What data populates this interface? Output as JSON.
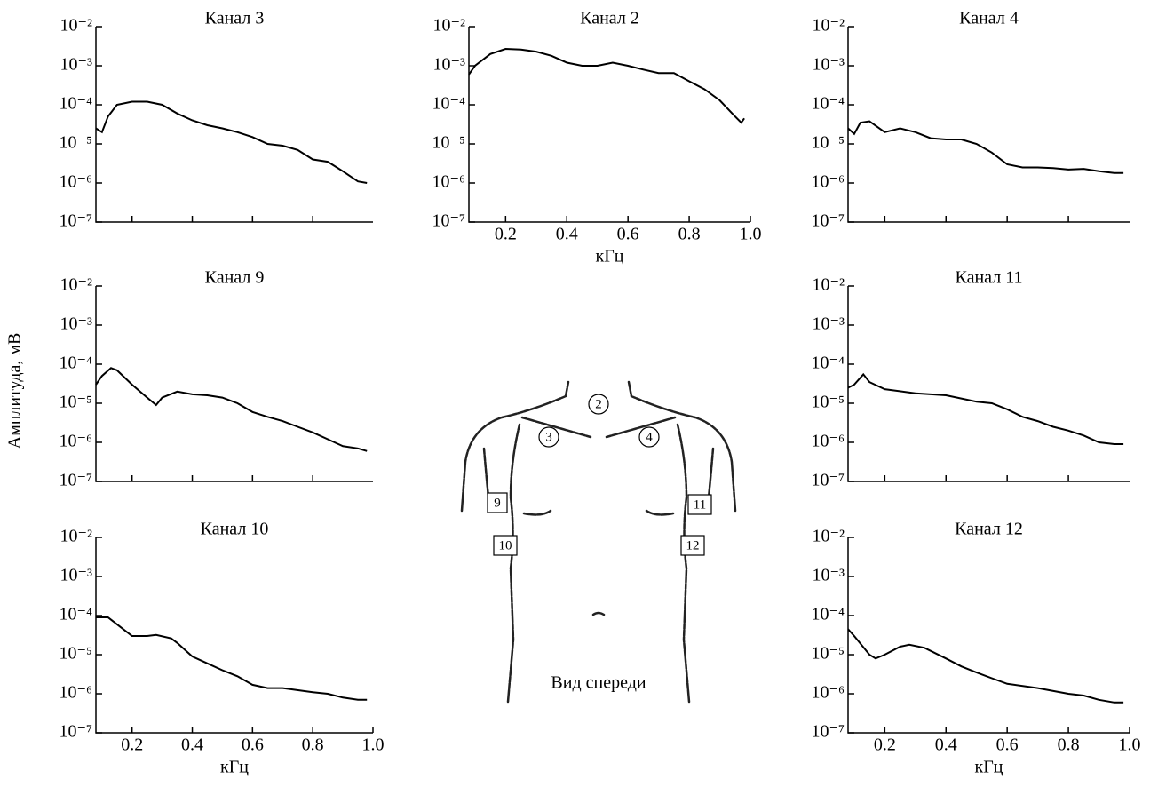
{
  "ylabel": "Амплитуда, мВ",
  "diagram": {
    "caption": "Вид спереди",
    "electrodes": [
      "2",
      "3",
      "4",
      "9",
      "10",
      "11",
      "12"
    ]
  },
  "chart_data": [
    {
      "type": "line",
      "title": "Канал 3",
      "log_y": true,
      "show_xtick_labels": false,
      "xlim": [
        0.08,
        1.0
      ],
      "ylim": [
        1e-07,
        0.01
      ],
      "xticks": [
        0.2,
        0.4,
        0.6,
        0.8
      ],
      "yticks": [
        {
          "value": 1e-07,
          "label": "10⁻⁷"
        },
        {
          "value": 1e-06,
          "label": "10⁻⁶"
        },
        {
          "value": 1e-05,
          "label": "10⁻⁵"
        },
        {
          "value": 0.0001,
          "label": "10⁻⁴"
        },
        {
          "value": 0.001,
          "label": "10⁻³"
        },
        {
          "value": 0.01,
          "label": "10⁻²"
        }
      ],
      "series": [
        {
          "color": "#000000",
          "x": [
            0.08,
            0.1,
            0.12,
            0.15,
            0.2,
            0.25,
            0.3,
            0.35,
            0.4,
            0.45,
            0.5,
            0.55,
            0.6,
            0.65,
            0.7,
            0.75,
            0.8,
            0.85,
            0.9,
            0.95,
            0.98
          ],
          "values": [
            2.5e-05,
            2e-05,
            5e-05,
            0.0001,
            0.00012,
            0.00012,
            0.0001,
            6e-05,
            4e-05,
            3e-05,
            2.5e-05,
            2e-05,
            1.5e-05,
            1e-05,
            9e-06,
            7e-06,
            4e-06,
            3.5e-06,
            2e-06,
            1.1e-06,
            1e-06
          ]
        }
      ]
    },
    {
      "type": "line",
      "title": "Канал 2",
      "log_y": true,
      "show_xtick_labels": true,
      "xlabel": "кГц",
      "xlim": [
        0.08,
        1.0
      ],
      "ylim": [
        1e-07,
        0.01
      ],
      "xticks": [
        0.2,
        0.4,
        0.6,
        0.8,
        {
          "value": 1.0,
          "label": "1.0"
        }
      ],
      "yticks": [
        {
          "value": 1e-07,
          "label": "10⁻⁷"
        },
        {
          "value": 1e-06,
          "label": "10⁻⁶"
        },
        {
          "value": 1e-05,
          "label": "10⁻⁵"
        },
        {
          "value": 0.0001,
          "label": "10⁻⁴"
        },
        {
          "value": 0.001,
          "label": "10⁻³"
        },
        {
          "value": 0.01,
          "label": "10⁻²"
        }
      ],
      "series": [
        {
          "color": "#000000",
          "x": [
            0.08,
            0.1,
            0.15,
            0.2,
            0.25,
            0.3,
            0.35,
            0.4,
            0.45,
            0.5,
            0.55,
            0.6,
            0.65,
            0.7,
            0.75,
            0.8,
            0.85,
            0.9,
            0.95,
            0.97,
            0.98
          ],
          "values": [
            0.0006,
            0.001,
            0.002,
            0.0027,
            0.0026,
            0.0023,
            0.0018,
            0.0012,
            0.001,
            0.001,
            0.0012,
            0.001,
            0.0008,
            0.00065,
            0.00065,
            0.0004,
            0.00025,
            0.00013,
            5e-05,
            3.5e-05,
            4.5e-05
          ]
        }
      ]
    },
    {
      "type": "line",
      "title": "Канал 4",
      "log_y": true,
      "show_xtick_labels": false,
      "xlim": [
        0.08,
        1.0
      ],
      "ylim": [
        1e-07,
        0.01
      ],
      "xticks": [
        0.2,
        0.4,
        0.6,
        0.8
      ],
      "yticks": [
        {
          "value": 1e-07,
          "label": "10⁻⁷"
        },
        {
          "value": 1e-06,
          "label": "10⁻⁶"
        },
        {
          "value": 1e-05,
          "label": "10⁻⁵"
        },
        {
          "value": 0.0001,
          "label": "10⁻⁴"
        },
        {
          "value": 0.001,
          "label": "10⁻³"
        },
        {
          "value": 0.01,
          "label": "10⁻²"
        }
      ],
      "series": [
        {
          "color": "#000000",
          "x": [
            0.08,
            0.1,
            0.12,
            0.15,
            0.2,
            0.25,
            0.3,
            0.35,
            0.4,
            0.45,
            0.5,
            0.55,
            0.6,
            0.65,
            0.7,
            0.75,
            0.8,
            0.85,
            0.9,
            0.95,
            0.98
          ],
          "values": [
            2.5e-05,
            1.8e-05,
            3.5e-05,
            3.8e-05,
            2e-05,
            2.5e-05,
            2e-05,
            1.4e-05,
            1.3e-05,
            1.3e-05,
            1e-05,
            6e-06,
            3e-06,
            2.5e-06,
            2.5e-06,
            2.4e-06,
            2.2e-06,
            2.3e-06,
            2e-06,
            1.8e-06,
            1.8e-06
          ]
        }
      ]
    },
    {
      "type": "line",
      "title": "Канал 9",
      "log_y": true,
      "show_xtick_labels": false,
      "xlim": [
        0.08,
        1.0
      ],
      "ylim": [
        1e-07,
        0.01
      ],
      "xticks": [
        0.2,
        0.4,
        0.6,
        0.8
      ],
      "yticks": [
        {
          "value": 1e-07,
          "label": "10⁻⁷"
        },
        {
          "value": 1e-06,
          "label": "10⁻⁶"
        },
        {
          "value": 1e-05,
          "label": "10⁻⁵"
        },
        {
          "value": 0.0001,
          "label": "10⁻⁴"
        },
        {
          "value": 0.001,
          "label": "10⁻³"
        },
        {
          "value": 0.01,
          "label": "10⁻²"
        }
      ],
      "series": [
        {
          "color": "#000000",
          "x": [
            0.08,
            0.1,
            0.13,
            0.15,
            0.2,
            0.25,
            0.28,
            0.3,
            0.35,
            0.4,
            0.45,
            0.5,
            0.55,
            0.6,
            0.65,
            0.7,
            0.75,
            0.8,
            0.85,
            0.9,
            0.95,
            0.98
          ],
          "values": [
            3e-05,
            5e-05,
            8e-05,
            7e-05,
            3e-05,
            1.4e-05,
            9e-06,
            1.4e-05,
            2e-05,
            1.7e-05,
            1.6e-05,
            1.4e-05,
            1e-05,
            6e-06,
            4.5e-06,
            3.5e-06,
            2.5e-06,
            1.8e-06,
            1.2e-06,
            8e-07,
            7e-07,
            6e-07
          ]
        }
      ]
    },
    {
      "type": "line",
      "title": "Канал 11",
      "log_y": true,
      "show_xtick_labels": false,
      "xlim": [
        0.08,
        1.0
      ],
      "ylim": [
        1e-07,
        0.01
      ],
      "xticks": [
        0.2,
        0.4,
        0.6,
        0.8
      ],
      "yticks": [
        {
          "value": 1e-07,
          "label": "10⁻⁷"
        },
        {
          "value": 1e-06,
          "label": "10⁻⁶"
        },
        {
          "value": 1e-05,
          "label": "10⁻⁵"
        },
        {
          "value": 0.0001,
          "label": "10⁻⁴"
        },
        {
          "value": 0.001,
          "label": "10⁻³"
        },
        {
          "value": 0.01,
          "label": "10⁻²"
        }
      ],
      "series": [
        {
          "color": "#000000",
          "x": [
            0.08,
            0.1,
            0.13,
            0.15,
            0.2,
            0.3,
            0.4,
            0.5,
            0.55,
            0.6,
            0.65,
            0.7,
            0.75,
            0.8,
            0.85,
            0.9,
            0.95,
            0.98
          ],
          "values": [
            2.5e-05,
            3e-05,
            5.5e-05,
            3.5e-05,
            2.3e-05,
            1.8e-05,
            1.6e-05,
            1.1e-05,
            1e-05,
            7e-06,
            4.5e-06,
            3.5e-06,
            2.5e-06,
            2e-06,
            1.5e-06,
            1e-06,
            9e-07,
            9e-07
          ]
        }
      ]
    },
    {
      "type": "line",
      "title": "Канал 10",
      "log_y": true,
      "show_xtick_labels": true,
      "xlabel": "кГц",
      "xlim": [
        0.08,
        1.0
      ],
      "ylim": [
        1e-07,
        0.01
      ],
      "xticks": [
        0.2,
        0.4,
        0.6,
        0.8,
        {
          "value": 1.0,
          "label": "1.0"
        }
      ],
      "yticks": [
        {
          "value": 1e-07,
          "label": "10⁻⁷"
        },
        {
          "value": 1e-06,
          "label": "10⁻⁶"
        },
        {
          "value": 1e-05,
          "label": "10⁻⁵"
        },
        {
          "value": 0.0001,
          "label": "10⁻⁴"
        },
        {
          "value": 0.001,
          "label": "10⁻³"
        },
        {
          "value": 0.01,
          "label": "10⁻²"
        }
      ],
      "series": [
        {
          "color": "#000000",
          "x": [
            0.08,
            0.12,
            0.15,
            0.2,
            0.25,
            0.28,
            0.33,
            0.35,
            0.4,
            0.45,
            0.5,
            0.55,
            0.6,
            0.65,
            0.7,
            0.8,
            0.85,
            0.9,
            0.95,
            0.98
          ],
          "values": [
            9e-05,
            9e-05,
            6e-05,
            3e-05,
            3e-05,
            3.2e-05,
            2.6e-05,
            2e-05,
            9e-06,
            6e-06,
            4e-06,
            2.8e-06,
            1.7e-06,
            1.4e-06,
            1.4e-06,
            1.1e-06,
            1e-06,
            8e-07,
            7e-07,
            7e-07
          ]
        }
      ]
    },
    {
      "type": "line",
      "title": "Канал 12",
      "log_y": true,
      "show_xtick_labels": true,
      "xlabel": "кГц",
      "xlim": [
        0.08,
        1.0
      ],
      "ylim": [
        1e-07,
        0.01
      ],
      "xticks": [
        0.2,
        0.4,
        0.6,
        0.8,
        {
          "value": 1.0,
          "label": "1.0"
        }
      ],
      "yticks": [
        {
          "value": 1e-07,
          "label": "10⁻⁷"
        },
        {
          "value": 1e-06,
          "label": "10⁻⁶"
        },
        {
          "value": 1e-05,
          "label": "10⁻⁵"
        },
        {
          "value": 0.0001,
          "label": "10⁻⁴"
        },
        {
          "value": 0.001,
          "label": "10⁻³"
        },
        {
          "value": 0.01,
          "label": "10⁻²"
        }
      ],
      "series": [
        {
          "color": "#000000",
          "x": [
            0.08,
            0.1,
            0.15,
            0.17,
            0.2,
            0.25,
            0.28,
            0.33,
            0.4,
            0.45,
            0.5,
            0.55,
            0.6,
            0.7,
            0.8,
            0.85,
            0.9,
            0.95,
            0.98
          ],
          "values": [
            4.5e-05,
            3e-05,
            1e-05,
            8e-06,
            1e-05,
            1.6e-05,
            1.8e-05,
            1.5e-05,
            8e-06,
            5e-06,
            3.5e-06,
            2.5e-06,
            1.8e-06,
            1.4e-06,
            1e-06,
            9e-07,
            7e-07,
            6e-07,
            6e-07
          ]
        }
      ]
    }
  ]
}
